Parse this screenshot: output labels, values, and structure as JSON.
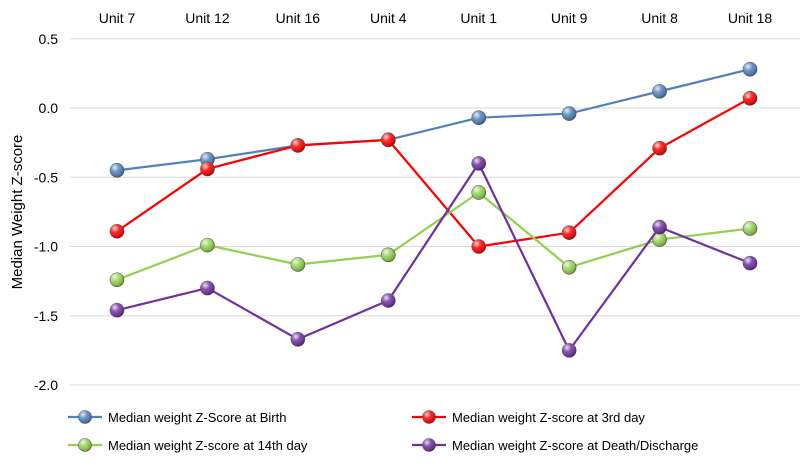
{
  "chart_data": {
    "type": "line",
    "categories": [
      "Unit 7",
      "Unit 12",
      "Unit 16",
      "Unit 4",
      "Unit 1",
      "Unit 9",
      "Unit 8",
      "Unit 18"
    ],
    "ylabel": "Median Weight Z-score",
    "ylim": [
      -2.0,
      0.5
    ],
    "yticks": [
      "0.5",
      "0.0",
      "-0.5",
      "-1.0",
      "-1.5",
      "-2.0"
    ],
    "ytick_values": [
      0.5,
      0.0,
      -0.5,
      -1.0,
      -1.5,
      -2.0
    ],
    "grid": "horizontal",
    "x_axis_position": "top",
    "legend_position": "bottom",
    "series": [
      {
        "name": "Median weight Z-Score at Birth",
        "color": "#4f81bd",
        "values": [
          -0.45,
          -0.37,
          -0.27,
          -0.23,
          -0.07,
          -0.04,
          0.12,
          0.28
        ]
      },
      {
        "name": "Median weight Z-score  at 3rd day",
        "color": "#ff0000",
        "values": [
          -0.89,
          -0.44,
          -0.27,
          -0.23,
          -1.0,
          -0.9,
          -0.29,
          0.07
        ]
      },
      {
        "name": "Median weight Z-score at 14th day",
        "color": "#92d050",
        "values": [
          -1.24,
          -0.99,
          -1.13,
          -1.06,
          -0.61,
          -1.15,
          -0.95,
          -0.87
        ]
      },
      {
        "name": "Median weight Z-score at Death/Discharge",
        "color": "#7030a0",
        "values": [
          -1.46,
          -1.3,
          -1.67,
          -1.39,
          -0.4,
          -1.75,
          -0.86,
          -1.12
        ]
      }
    ]
  }
}
